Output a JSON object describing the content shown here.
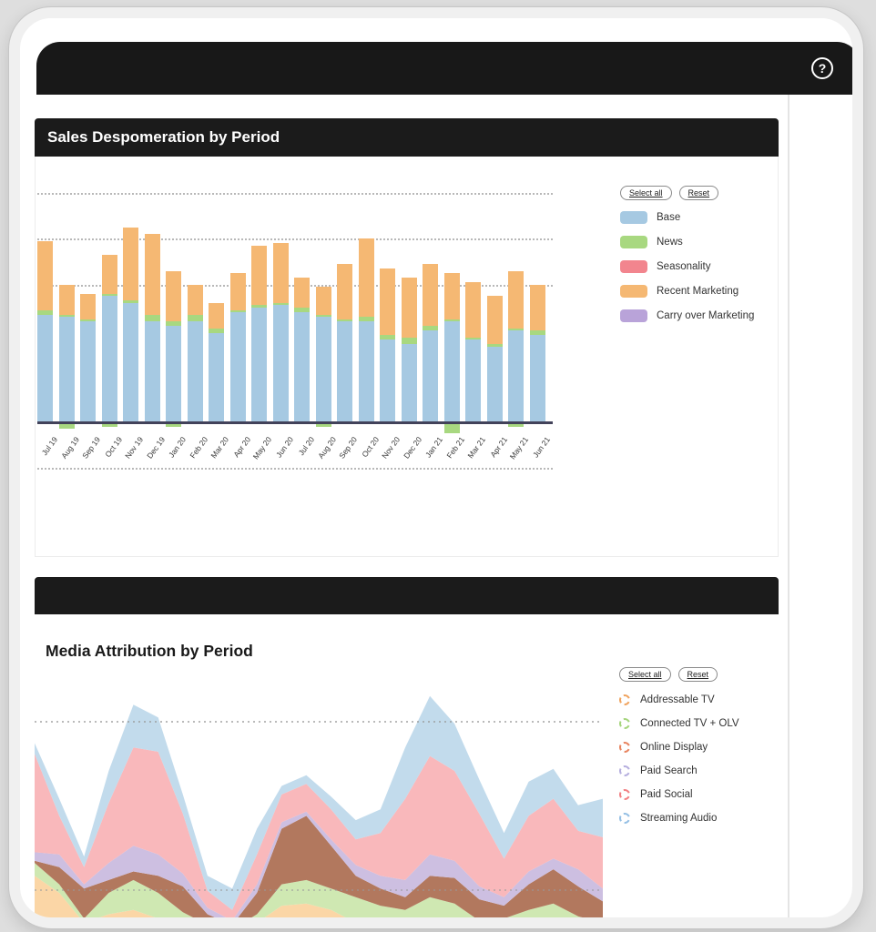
{
  "app": {
    "background_color": "#dedede",
    "appbar_color": "#181818",
    "help_label": "?"
  },
  "panel1": {
    "title": "Sales Despomeration by Period",
    "buttons": {
      "select_all": "Select all",
      "reset": "Reset"
    },
    "legend": [
      {
        "label": "Base",
        "color": "#a6c9e2"
      },
      {
        "label": "News",
        "color": "#a8d880"
      },
      {
        "label": "Seasonality",
        "color": "#f2858e"
      },
      {
        "label": "Recent Marketing",
        "color": "#f5b873"
      },
      {
        "label": "Carry over Marketing",
        "color": "#b9a3d9"
      }
    ],
    "chart_data": {
      "type": "bar",
      "stacked": true,
      "title": "Sales Despomeration by Period",
      "categories": [
        "Jul 19",
        "Aug 19",
        "Sep 19",
        "Oct 19",
        "Nov 19",
        "Dec 19",
        "Jan 20",
        "Feb 20",
        "Mar 20",
        "Apr 20",
        "May 20",
        "Jun 20",
        "Jul 20",
        "Aug 20",
        "Sep 20",
        "Oct 20",
        "Nov 20",
        "Dec 20",
        "Jan 21",
        "Feb 21",
        "Mar 21",
        "Apr 21",
        "May 21",
        "Jun 21"
      ],
      "series": [
        {
          "name": "Base",
          "color": "#a6c9e2",
          "values": [
            47,
            46,
            44,
            55,
            52,
            44,
            42,
            44,
            39,
            48,
            50,
            51,
            48,
            46,
            44,
            44,
            36,
            34,
            40,
            44,
            36,
            33,
            40,
            38
          ]
        },
        {
          "name": "News",
          "color": "#a8d880",
          "values": [
            2,
            1,
            1,
            1,
            1,
            3,
            2,
            3,
            2,
            1,
            1,
            1,
            2,
            1,
            1,
            2,
            2,
            3,
            2,
            1,
            1,
            1,
            1,
            2
          ]
        },
        {
          "name": "Recent Marketing",
          "color": "#f5b873",
          "values": [
            30,
            13,
            11,
            17,
            32,
            35,
            22,
            13,
            11,
            16,
            26,
            26,
            13,
            12,
            24,
            34,
            29,
            26,
            27,
            20,
            24,
            21,
            25,
            20
          ]
        }
      ],
      "negative_series": {
        "name": "News",
        "color": "#a8d880",
        "values": [
          0,
          2,
          0,
          1,
          0,
          0,
          1,
          0,
          0,
          0,
          0,
          0,
          0,
          1,
          0,
          0,
          0,
          0,
          0,
          4,
          0,
          0,
          1,
          0
        ]
      },
      "y_axis_labels_visible": false,
      "grid": true,
      "gridline_units": [
        100,
        80,
        60
      ],
      "negative_gridline_unit": -20,
      "legend_position": "right"
    }
  },
  "panel2": {
    "title": "Media Attribution by Period",
    "buttons": {
      "select_all": "Select all",
      "reset": "Reset"
    },
    "legend": [
      {
        "label": "Addressable TV",
        "color": "#f0a35e"
      },
      {
        "label": "Connected TV + OLV",
        "color": "#a5d47c"
      },
      {
        "label": "Online Display",
        "color": "#e8845f"
      },
      {
        "label": "Paid Search",
        "color": "#b5aede"
      },
      {
        "label": "Paid Social",
        "color": "#f28083"
      },
      {
        "label": "Streaming Audio",
        "color": "#94bfe4"
      }
    ],
    "chart_data": {
      "type": "area",
      "stacked": true,
      "title": "Media Attribution by Period",
      "x": [
        1,
        2,
        3,
        4,
        5,
        6,
        7,
        8,
        9,
        10,
        11,
        12,
        13,
        14,
        15,
        16,
        17,
        18,
        19,
        20,
        21,
        22,
        23,
        24
      ],
      "x_axis_labels_visible": false,
      "series": [
        {
          "name": "Addressable TV",
          "color": "#fbd39e",
          "values": [
            28,
            20,
            6,
            10,
            12,
            8,
            5,
            3,
            2,
            6,
            14,
            15,
            12,
            6,
            4,
            4,
            6,
            5,
            3,
            2,
            2,
            3,
            3,
            2
          ]
        },
        {
          "name": "Connected TV + OLV",
          "color": "#cbe6ab",
          "values": [
            6,
            4,
            2,
            10,
            14,
            12,
            6,
            2,
            1,
            4,
            10,
            11,
            10,
            12,
            10,
            8,
            12,
            10,
            4,
            6,
            10,
            12,
            6,
            4
          ]
        },
        {
          "name": "Online Display",
          "color": "#ab6c50",
          "values": [
            1,
            8,
            14,
            6,
            4,
            8,
            12,
            5,
            2,
            10,
            26,
            30,
            20,
            10,
            8,
            6,
            10,
            12,
            10,
            6,
            12,
            16,
            14,
            10
          ]
        },
        {
          "name": "Paid Search",
          "color": "#c9bade",
          "values": [
            4,
            6,
            2,
            8,
            12,
            10,
            6,
            3,
            2,
            4,
            3,
            2,
            3,
            5,
            6,
            8,
            10,
            8,
            6,
            4,
            6,
            5,
            8,
            6
          ]
        },
        {
          "name": "Paid Social",
          "color": "#f8b2b5",
          "values": [
            46,
            18,
            8,
            28,
            46,
            48,
            28,
            8,
            5,
            14,
            13,
            13,
            14,
            12,
            20,
            38,
            46,
            42,
            34,
            18,
            26,
            28,
            18,
            24
          ]
        },
        {
          "name": "Streaming Audio",
          "color": "#bdd8ea",
          "values": [
            5,
            8,
            5,
            15,
            20,
            16,
            9,
            7,
            10,
            12,
            4,
            4,
            6,
            9,
            11,
            24,
            28,
            22,
            16,
            12,
            16,
            14,
            12,
            18
          ]
        }
      ],
      "grid": true,
      "legend_position": "right"
    }
  }
}
